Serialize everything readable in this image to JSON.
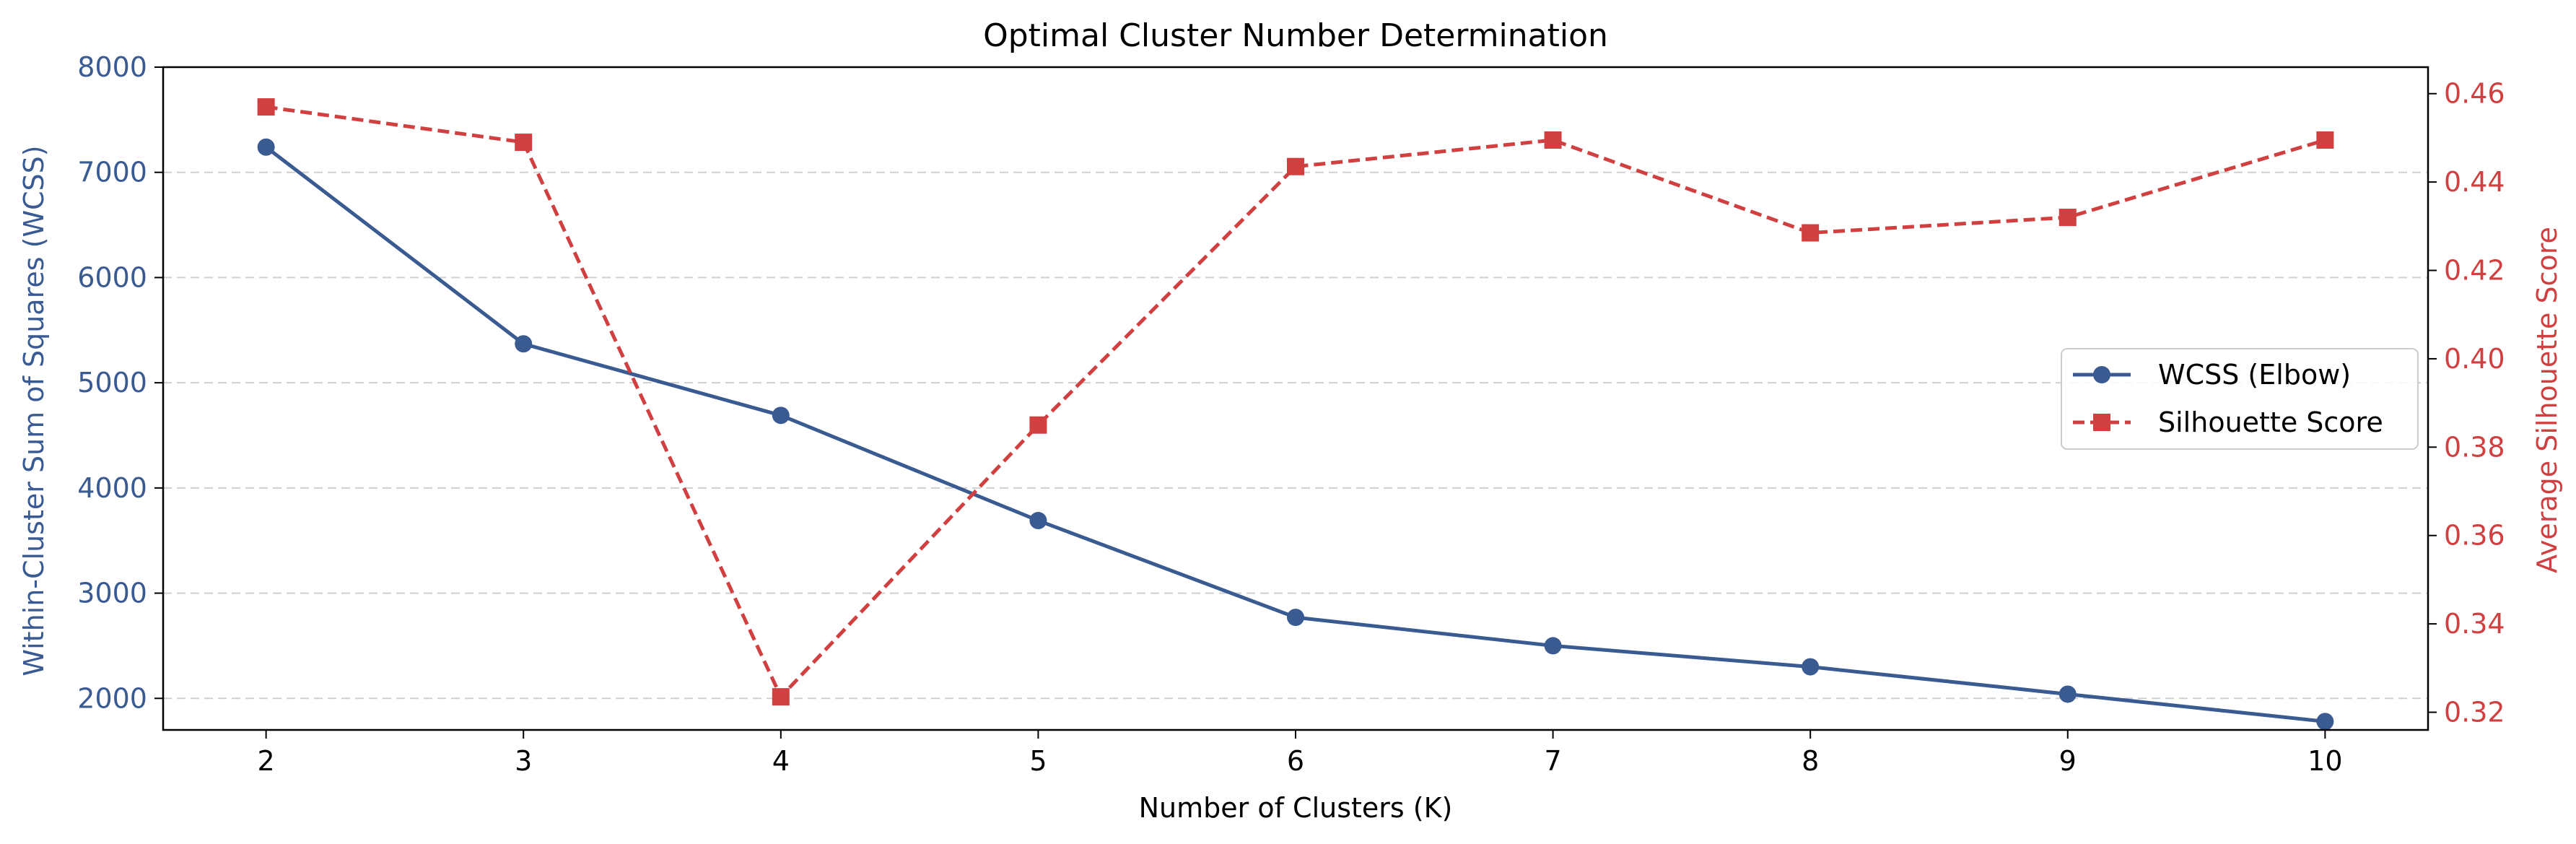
{
  "chart_data": {
    "type": "line",
    "title": "Optimal Cluster Number Determination",
    "xlabel": "Number of Clusters (K)",
    "ylabel_left": "Within-Cluster Sum of Squares (WCSS)",
    "ylabel_right": "Average Silhouette Score",
    "x": [
      2,
      3,
      4,
      5,
      6,
      7,
      8,
      9,
      10
    ],
    "xlim": [
      1.6,
      10.4
    ],
    "ylim_left": [
      1700,
      8000
    ],
    "ylim_right": [
      0.316,
      0.466
    ],
    "x_ticks": [
      "2",
      "3",
      "4",
      "5",
      "6",
      "7",
      "8",
      "9",
      "10"
    ],
    "y_ticks_left": [
      "2000",
      "3000",
      "4000",
      "5000",
      "6000",
      "7000",
      "8000"
    ],
    "y_ticks_right": [
      "0.32",
      "0.34",
      "0.36",
      "0.38",
      "0.40",
      "0.42",
      "0.44",
      "0.46"
    ],
    "grid": "horizontal dashed",
    "legend_position": "center-right",
    "series": [
      {
        "name": "WCSS (Elbow)",
        "axis": "left",
        "style": "solid",
        "marker": "circle",
        "color": "#3a5a92",
        "values": [
          7240,
          5370,
          4690,
          3690,
          2770,
          2500,
          2300,
          2040,
          1780
        ]
      },
      {
        "name": "Silhouette Score",
        "axis": "right",
        "style": "dashed",
        "marker": "square",
        "color": "#d04040",
        "values": [
          0.457,
          0.449,
          0.3235,
          0.385,
          0.4435,
          0.4495,
          0.4285,
          0.432,
          0.4495
        ]
      }
    ]
  }
}
